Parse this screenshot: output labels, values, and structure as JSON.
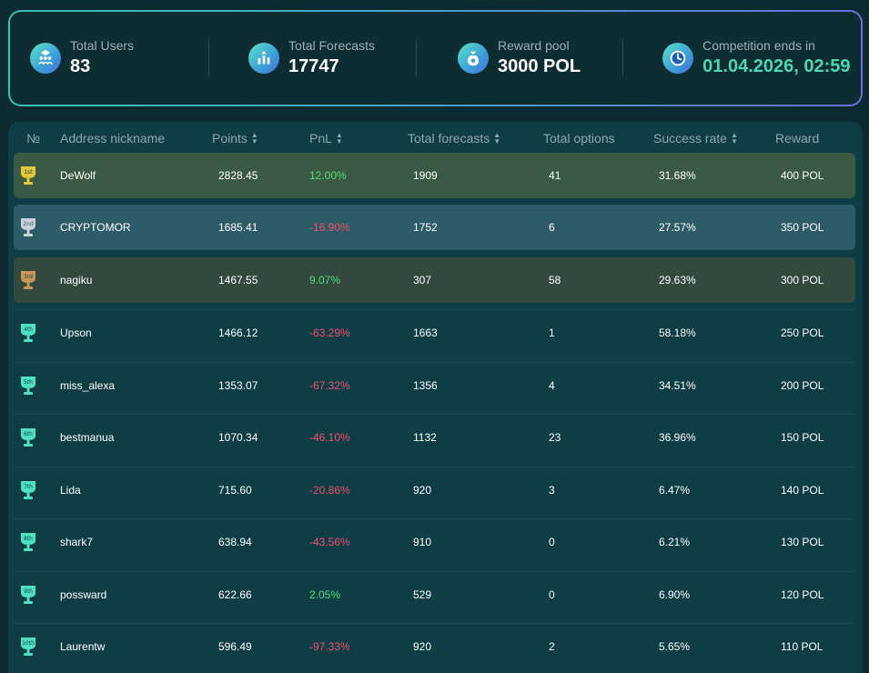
{
  "stats": [
    {
      "label": "Total Users",
      "value": "83",
      "icon": "users-icon"
    },
    {
      "label": "Total Forecasts",
      "value": "17747",
      "icon": "forecasts-icon"
    },
    {
      "label": "Reward pool",
      "value": "3000 POL",
      "icon": "money-bag-icon"
    },
    {
      "label": "Competition ends in",
      "value": "01.04.2026, 02:59",
      "icon": "clock-icon"
    }
  ],
  "table": {
    "headers": {
      "rank": "№",
      "nickname": "Address nickname",
      "points": "Points",
      "pnl": "PnL",
      "forecasts": "Total forecasts",
      "options": "Total options",
      "success": "Success rate",
      "reward": "Reward"
    },
    "rows": [
      {
        "badge": "1st",
        "nickname": "DeWolf",
        "points": "2828.45",
        "pnl": "12.00%",
        "pnl_sign": "pos",
        "forecasts": "1909",
        "options": "41",
        "success": "31.68%",
        "reward": "400 POL"
      },
      {
        "badge": "2nd",
        "nickname": "CRYPTOMOR",
        "points": "1685.41",
        "pnl": "-16.90%",
        "pnl_sign": "neg",
        "forecasts": "1752",
        "options": "6",
        "success": "27.57%",
        "reward": "350 POL"
      },
      {
        "badge": "3rd",
        "nickname": "nagiku",
        "points": "1467.55",
        "pnl": "9.07%",
        "pnl_sign": "pos",
        "forecasts": "307",
        "options": "58",
        "success": "29.63%",
        "reward": "300 POL"
      },
      {
        "badge": "4th",
        "nickname": "Upson",
        "points": "1466.12",
        "pnl": "-63.29%",
        "pnl_sign": "neg",
        "forecasts": "1663",
        "options": "1",
        "success": "58.18%",
        "reward": "250 POL"
      },
      {
        "badge": "5th",
        "nickname": "miss_alexa",
        "points": "1353.07",
        "pnl": "-67.32%",
        "pnl_sign": "neg",
        "forecasts": "1356",
        "options": "4",
        "success": "34.51%",
        "reward": "200 POL"
      },
      {
        "badge": "6th",
        "nickname": "bestmanua",
        "points": "1070.34",
        "pnl": "-46.10%",
        "pnl_sign": "neg",
        "forecasts": "1132",
        "options": "23",
        "success": "36.96%",
        "reward": "150 POL"
      },
      {
        "badge": "7th",
        "nickname": "Lida",
        "points": "715.60",
        "pnl": "-20.86%",
        "pnl_sign": "neg",
        "forecasts": "920",
        "options": "3",
        "success": "6.47%",
        "reward": "140 POL"
      },
      {
        "badge": "8th",
        "nickname": "shark7",
        "points": "638.94",
        "pnl": "-43.56%",
        "pnl_sign": "neg",
        "forecasts": "910",
        "options": "0",
        "success": "6.21%",
        "reward": "130 POL"
      },
      {
        "badge": "9th",
        "nickname": "possward",
        "points": "622.66",
        "pnl": "2.05%",
        "pnl_sign": "pos",
        "forecasts": "529",
        "options": "0",
        "success": "6.90%",
        "reward": "120 POL"
      },
      {
        "badge": "10th",
        "nickname": "Laurentw",
        "points": "596.49",
        "pnl": "-97.33%",
        "pnl_sign": "neg",
        "forecasts": "920",
        "options": "2",
        "success": "5.65%",
        "reward": "110 POL"
      }
    ]
  },
  "colors": {
    "gold": "#e6c63a",
    "silver": "#c9d3d6",
    "bronze": "#c8955a",
    "teal": "#4fe0c0",
    "positive": "#52e07a",
    "negative": "#f0506a"
  }
}
